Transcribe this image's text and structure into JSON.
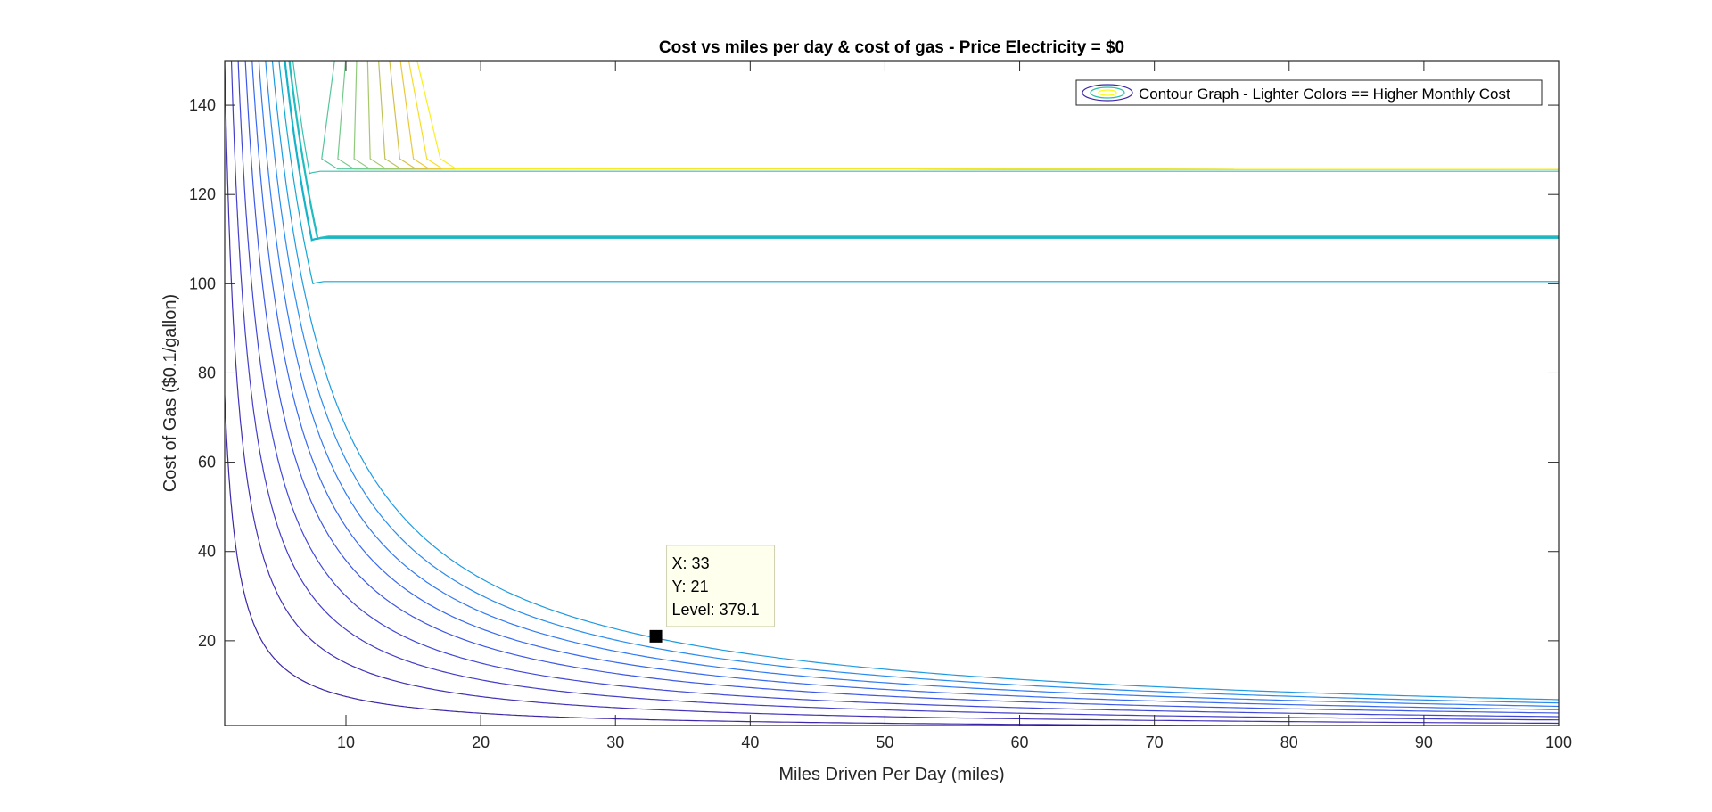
{
  "chart_data": {
    "type": "contour",
    "title": "Cost vs miles per day & cost of gas - Price Electricity = $0",
    "xlabel": "Miles Driven Per Day (miles)",
    "ylabel": "Cost of Gas ($0.1/gallon)",
    "xlim": [
      1,
      100
    ],
    "ylim": [
      1,
      150
    ],
    "xticks": [
      10,
      20,
      30,
      40,
      50,
      60,
      70,
      80,
      90,
      100
    ],
    "yticks": [
      20,
      40,
      60,
      80,
      100,
      120,
      140
    ],
    "grid": false,
    "legend": {
      "placement": "top-right",
      "entries": [
        "Contour Graph - Lighter Colors == Higher Monthly Cost"
      ]
    },
    "colormap": [
      "#3e26a8",
      "#4245d5",
      "#3b63f1",
      "#2f81f3",
      "#1c9edd",
      "#10b4c4",
      "#2fc0a6",
      "#6cc886",
      "#a9c25e",
      "#dab93c",
      "#f7d02a",
      "#f9fb15"
    ],
    "hyperbola_levels": [
      {
        "k": 75,
        "color": "#3e26a8"
      },
      {
        "k": 150,
        "color": "#4131b8"
      },
      {
        "k": 225,
        "color": "#433dc8"
      },
      {
        "k": 300,
        "color": "#4148d6"
      },
      {
        "k": 380,
        "color": "#3d58e4"
      },
      {
        "k": 455,
        "color": "#3869ee"
      },
      {
        "k": 530,
        "color": "#317af2"
      },
      {
        "k": 605,
        "color": "#2a8bed"
      },
      {
        "k": 680,
        "color": "#1e9be0"
      }
    ],
    "breakpoint_levels": [
      {
        "k": 755,
        "plateau": 100.5,
        "color": "#14a8d0"
      },
      {
        "k": 820,
        "plateau": 110.3,
        "color": "#14b3c8"
      },
      {
        "k": 870,
        "plateau": 110.6,
        "color": "#20bcc0"
      },
      {
        "k": 910,
        "plateau": 125.2,
        "color": "#3ac1ae"
      }
    ],
    "steep_levels": [
      {
        "x_top": 9.2,
        "x_bottom": 8.2,
        "color": "#55c59a"
      },
      {
        "x_top": 10.0,
        "x_bottom": 9.4,
        "color": "#74c98a"
      },
      {
        "x_top": 10.8,
        "x_bottom": 10.6,
        "color": "#8fca7a"
      },
      {
        "x_top": 11.6,
        "x_bottom": 11.8,
        "color": "#a7c76a"
      },
      {
        "x_top": 12.4,
        "x_bottom": 12.9,
        "color": "#bfc25a"
      },
      {
        "x_top": 13.2,
        "x_bottom": 14.0,
        "color": "#d6bf48"
      },
      {
        "x_top": 14.0,
        "x_bottom": 15.0,
        "color": "#ebc83a"
      },
      {
        "x_top": 14.6,
        "x_bottom": 16.0,
        "color": "#f5dd2e"
      },
      {
        "x_top": 15.2,
        "x_bottom": 17.0,
        "color": "#f9f01e"
      }
    ],
    "datatip": {
      "x": 33,
      "y": 21,
      "level": 379.1,
      "x_text": "X: 33",
      "y_text": "Y: 21",
      "level_text": "Level: 379.1"
    }
  }
}
